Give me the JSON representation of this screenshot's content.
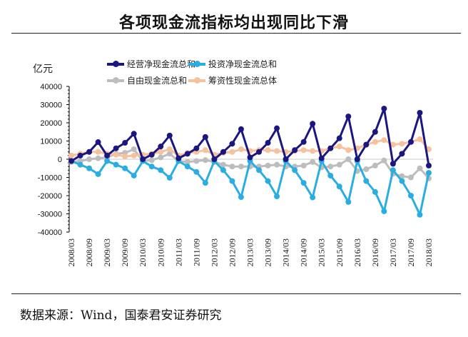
{
  "title": "各项现金流指标均出现同比下滑",
  "source": "数据来源：Wind，国泰君安证券研究",
  "chart_data": {
    "type": "line",
    "ylabel": "亿元",
    "ylim": [
      -40000,
      40000
    ],
    "yticks": [
      40000,
      30000,
      20000,
      10000,
      0,
      -10000,
      -20000,
      -30000,
      -40000
    ],
    "ytick_labels": [
      "40000",
      "30000",
      "20000",
      "10000",
      "0",
      "-10000",
      "-20000",
      "-30000",
      "-40000"
    ],
    "x": [
      "2008/03",
      "2008/06",
      "2008/09",
      "2008/12",
      "2009/03",
      "2009/06",
      "2009/09",
      "2009/12",
      "2010/03",
      "2010/06",
      "2010/09",
      "2010/12",
      "2011/03",
      "2011/06",
      "2011/09",
      "2011/12",
      "2012/03",
      "2012/06",
      "2012/09",
      "2012/12",
      "2013/03",
      "2013/06",
      "2013/09",
      "2013/12",
      "2014/03",
      "2014/06",
      "2014/09",
      "2014/12",
      "2015/03",
      "2015/06",
      "2015/09",
      "2015/12",
      "2016/03",
      "2016/06",
      "2016/09",
      "2016/12",
      "2017/03",
      "2017/06",
      "2017/09",
      "2017/12",
      "2018/03"
    ],
    "xtick_labels": [
      "2008/03",
      "2008/09",
      "2009/03",
      "2009/09",
      "2010/03",
      "2010/09",
      "2011/03",
      "2011/09",
      "2012/03",
      "2012/09",
      "2013/03",
      "2013/09",
      "2014/03",
      "2014/09",
      "2015/03",
      "2015/09",
      "2016/03",
      "2016/09",
      "2017/03",
      "2017/09",
      "2018/03"
    ],
    "grid": false,
    "legend_position": "top",
    "series": [
      {
        "name": "经营净现金流总和",
        "color": "#1b1680",
        "values": [
          -1000,
          2000,
          4000,
          9400,
          2000,
          6000,
          9000,
          14000,
          0,
          2500,
          7000,
          13000,
          500,
          3000,
          6000,
          12200,
          0,
          4000,
          8500,
          16500,
          1000,
          4000,
          9000,
          17000,
          0,
          5000,
          9500,
          19500,
          500,
          6000,
          11500,
          23500,
          0,
          8000,
          15000,
          27800,
          -2500,
          3000,
          9500,
          25500,
          -3500
        ]
      },
      {
        "name": "投资净现金流总和",
        "color": "#2aaee2",
        "values": [
          -1000,
          -3000,
          -5000,
          -8200,
          -1000,
          -3000,
          -5000,
          -9000,
          -1000,
          -4000,
          -6000,
          -10200,
          -1000,
          -4000,
          -7000,
          -13000,
          -1000,
          -6000,
          -12000,
          -20800,
          -1000,
          -6000,
          -12000,
          -20400,
          -1000,
          -6000,
          -13000,
          -21000,
          -1000,
          -9000,
          -15000,
          -23500,
          -1000,
          -12000,
          -18000,
          -28600,
          -6000,
          -12000,
          -20000,
          -30500,
          -7500
        ]
      },
      {
        "name": "自由现金流总和",
        "color": "#bdbdbd",
        "values": [
          -1500,
          -1000,
          0,
          500,
          1000,
          3000,
          3500,
          5500,
          -1000,
          -500,
          1000,
          3000,
          -1000,
          -1500,
          -1000,
          -500,
          -1500,
          -3000,
          -4000,
          -4000,
          -4000,
          -4000,
          -3500,
          -3000,
          -4000,
          -4000,
          -3500,
          -1500,
          -4500,
          -4000,
          -3000,
          0,
          -6500,
          -5500,
          -3500,
          -700,
          -8000,
          -9300,
          -10000,
          -5000,
          -10500
        ]
      },
      {
        "name": "筹资性现金流总体",
        "color": "#f6c19c",
        "values": [
          2000,
          3000,
          4000,
          4000,
          3000,
          2500,
          1500,
          2000,
          2500,
          3000,
          4000,
          5500,
          2000,
          3500,
          4000,
          5000,
          2500,
          3500,
          4000,
          5500,
          4500,
          5000,
          5000,
          4500,
          4000,
          4500,
          5000,
          4500,
          4500,
          6000,
          7000,
          5000,
          6000,
          8000,
          9500,
          10500,
          8000,
          8500,
          9500,
          11000,
          5500
        ]
      }
    ]
  }
}
